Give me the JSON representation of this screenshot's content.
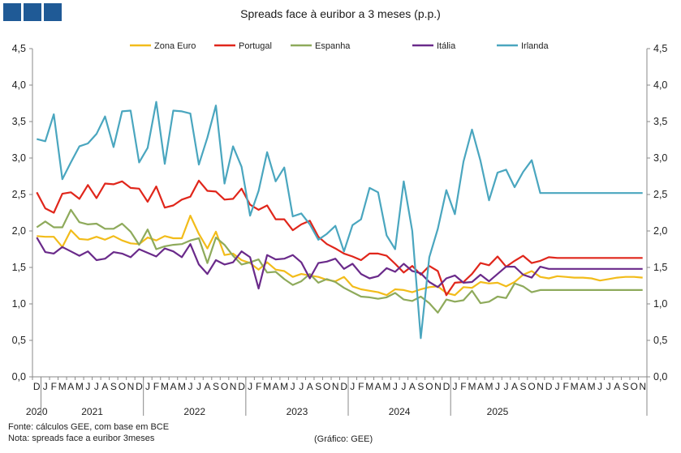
{
  "header": {
    "logo_colors": [
      "#1f5a96",
      "#1f5a96",
      "#1f5a96"
    ]
  },
  "chart_data": {
    "type": "line",
    "title": "Spreads face à euribor a 3 meses (p.p.)",
    "xlabel": "",
    "ylabel": "",
    "ylim": [
      0,
      4.5
    ],
    "yticks": [
      "0,0",
      "0,5",
      "1,0",
      "1,5",
      "2,0",
      "2,5",
      "3,0",
      "3,5",
      "4,0",
      "4,5"
    ],
    "grid": false,
    "legend_position": "top",
    "month_labels": [
      "D",
      "J",
      "F",
      "M",
      "A",
      "M",
      "J",
      "J",
      "A",
      "S",
      "O",
      "N",
      "D",
      "J",
      "F",
      "M",
      "A",
      "M",
      "J",
      "J",
      "A",
      "S",
      "O",
      "N",
      "D",
      "J",
      "F",
      "M",
      "A",
      "M",
      "J",
      "J",
      "A",
      "S",
      "O",
      "N",
      "D",
      "J",
      "F",
      "M",
      "A",
      "M",
      "J",
      "J",
      "A",
      "S",
      "O",
      "N",
      "D",
      "J",
      "F",
      "M",
      "A",
      "M",
      "J",
      "J",
      "A",
      "S",
      "O",
      "N",
      "D",
      "J",
      "F",
      "M",
      "A",
      "M",
      "J",
      "J",
      "A",
      "S",
      "O",
      "N"
    ],
    "year_labels": [
      {
        "label": "2020",
        "start": 0,
        "end": 0
      },
      {
        "label": "2021",
        "start": 1,
        "end": 12
      },
      {
        "label": "2022",
        "start": 13,
        "end": 24
      },
      {
        "label": "2023",
        "start": 25,
        "end": 36
      },
      {
        "label": "2024",
        "start": 37,
        "end": 48
      },
      {
        "label": "2025",
        "start": 49,
        "end": 59
      }
    ],
    "x": [
      0,
      0.5,
      1,
      1.5,
      2,
      2.5,
      3,
      3.5,
      4,
      4.5,
      5,
      5.5,
      6,
      6.5,
      7,
      7.5,
      8,
      8.5,
      9,
      9.5,
      10,
      10.5,
      11,
      11.5,
      12,
      12.5,
      13,
      13.5,
      14,
      14.5,
      15,
      15.5,
      16,
      16.5,
      17,
      17.5,
      18,
      18.5,
      19,
      19.5,
      20,
      20.5,
      21,
      21.5,
      22,
      22.5,
      23,
      23.5,
      24,
      24.5,
      25,
      25.5,
      26,
      26.5,
      27,
      27.5,
      28,
      28.5,
      29,
      29.5,
      30,
      30.5,
      31,
      31.5,
      32,
      32.5,
      33,
      33.5,
      34,
      34.5,
      35,
      35.5,
      36,
      36.5,
      37,
      37.5,
      38,
      38.5,
      39,
      39.5,
      40,
      40.5,
      41,
      41.5,
      42,
      42.5,
      43,
      43.5,
      44,
      44.5,
      45,
      45.5,
      46,
      46.5,
      47,
      47.5,
      48,
      48.5,
      49,
      49.5,
      50,
      50.5,
      51,
      51.5,
      52,
      52.5,
      53,
      53.5,
      54,
      54.5,
      55,
      55.5,
      56,
      56.5,
      57,
      57.5,
      58,
      58.5,
      59,
      59.5
    ],
    "series": [
      {
        "name": "Zona Euro",
        "color": "#f2bc1a",
        "values": [
          1.93,
          1.92,
          1.92,
          1.78,
          2.01,
          1.89,
          1.88,
          1.92,
          1.88,
          1.93,
          1.87,
          1.83,
          1.82,
          1.91,
          1.87,
          1.93,
          1.9,
          1.9,
          2.21,
          1.96,
          1.76,
          1.99,
          1.67,
          1.69,
          1.6,
          1.56,
          1.47,
          1.57,
          1.47,
          1.45,
          1.37,
          1.41,
          1.39,
          1.37,
          1.33,
          1.31,
          1.37,
          1.24,
          1.2,
          1.18,
          1.16,
          1.12,
          1.2,
          1.19,
          1.16,
          1.2,
          1.23,
          1.24,
          1.15,
          1.12,
          1.23,
          1.22,
          1.3,
          1.28,
          1.29,
          1.24,
          1.3,
          1.4,
          1.45,
          1.37,
          1.35,
          1.38,
          1.37,
          1.36,
          1.36,
          1.35,
          1.32,
          1.34,
          1.36,
          1.37,
          1.37,
          1.36,
          1.36,
          1.35,
          1.35,
          1.34,
          1.35,
          1.36,
          1.36,
          1.37,
          1.37,
          1.36,
          1.37,
          1.38,
          1.37,
          1.36,
          1.37,
          1.36,
          1.35,
          1.36,
          1.37,
          1.36,
          1.37,
          1.36,
          1.37,
          1.36,
          1.37,
          1.36,
          1.37,
          1.36,
          1.37,
          1.36,
          1.37,
          1.36,
          1.37,
          1.36,
          1.37,
          1.36,
          1.37,
          1.36,
          1.37,
          1.36,
          1.37,
          1.36,
          1.37,
          1.36,
          1.37,
          1.36,
          1.37,
          1.36
        ]
      },
      {
        "name": "Portugal",
        "color": "#e0261b",
        "values": [
          2.53,
          2.31,
          2.25,
          2.51,
          2.53,
          2.44,
          2.63,
          2.45,
          2.65,
          2.64,
          2.68,
          2.59,
          2.58,
          2.4,
          2.61,
          2.32,
          2.35,
          2.43,
          2.47,
          2.69,
          2.55,
          2.54,
          2.43,
          2.44,
          2.58,
          2.36,
          2.29,
          2.35,
          2.16,
          2.16,
          2.01,
          2.09,
          2.14,
          1.92,
          1.82,
          1.76,
          1.69,
          1.65,
          1.6,
          1.69,
          1.69,
          1.66,
          1.55,
          1.43,
          1.52,
          1.4,
          1.52,
          1.45,
          1.12,
          1.29,
          1.3,
          1.41,
          1.56,
          1.53,
          1.65,
          1.51,
          1.59,
          1.66,
          1.56,
          1.59,
          1.64,
          1.63,
          1.63,
          1.63,
          1.63,
          1.63,
          1.63,
          1.63,
          1.63,
          1.63,
          1.63,
          1.63,
          1.63,
          1.63,
          1.63,
          1.63,
          1.63,
          1.63,
          1.63,
          1.63,
          1.63,
          1.63,
          1.63,
          1.63,
          1.63,
          1.63,
          1.63,
          1.63,
          1.63,
          1.63,
          1.63,
          1.63,
          1.63,
          1.63,
          1.63,
          1.63,
          1.63,
          1.63,
          1.63,
          1.63,
          1.63,
          1.63,
          1.63,
          1.63,
          1.63,
          1.63,
          1.63,
          1.63,
          1.63,
          1.63,
          1.63,
          1.63,
          1.63,
          1.63,
          1.63,
          1.63,
          1.63,
          1.63,
          1.63,
          1.63
        ]
      },
      {
        "name": "Espanha",
        "color": "#8eaa5b",
        "values": [
          2.05,
          2.13,
          2.05,
          2.05,
          2.29,
          2.12,
          2.09,
          2.1,
          2.03,
          2.03,
          2.1,
          1.99,
          1.81,
          2.02,
          1.75,
          1.79,
          1.81,
          1.82,
          1.87,
          1.9,
          1.56,
          1.91,
          1.81,
          1.66,
          1.54,
          1.57,
          1.61,
          1.43,
          1.44,
          1.34,
          1.26,
          1.31,
          1.41,
          1.29,
          1.34,
          1.3,
          1.22,
          1.16,
          1.1,
          1.09,
          1.07,
          1.09,
          1.15,
          1.06,
          1.04,
          1.1,
          1.01,
          0.88,
          1.06,
          1.03,
          1.05,
          1.18,
          1.01,
          1.03,
          1.1,
          1.08,
          1.28,
          1.24,
          1.16,
          1.19,
          1.19,
          1.19,
          1.19,
          1.19,
          1.19,
          1.19,
          1.19,
          1.19,
          1.19,
          1.19,
          1.19,
          1.19,
          1.19,
          1.19,
          1.19,
          1.19,
          1.19,
          1.19,
          1.19,
          1.19,
          1.19,
          1.19,
          1.19,
          1.19,
          1.19,
          1.19,
          1.19,
          1.19,
          1.19,
          1.19,
          1.19,
          1.19,
          1.19,
          1.19,
          1.19,
          1.19,
          1.19,
          1.19,
          1.19,
          1.19,
          1.19,
          1.19,
          1.19,
          1.19,
          1.19,
          1.19,
          1.19,
          1.19,
          1.19,
          1.19,
          1.19,
          1.19,
          1.19,
          1.19,
          1.19,
          1.19,
          1.19,
          1.19,
          1.19,
          1.19
        ]
      },
      {
        "name": "Itália",
        "color": "#6a2a8a",
        "values": [
          1.91,
          1.71,
          1.69,
          1.78,
          1.72,
          1.66,
          1.72,
          1.6,
          1.62,
          1.71,
          1.69,
          1.64,
          1.75,
          1.7,
          1.65,
          1.76,
          1.72,
          1.64,
          1.82,
          1.54,
          1.41,
          1.6,
          1.54,
          1.57,
          1.72,
          1.64,
          1.21,
          1.67,
          1.61,
          1.62,
          1.67,
          1.57,
          1.35,
          1.56,
          1.58,
          1.62,
          1.48,
          1.55,
          1.41,
          1.35,
          1.38,
          1.49,
          1.44,
          1.55,
          1.45,
          1.42,
          1.3,
          1.23,
          1.35,
          1.39,
          1.29,
          1.3,
          1.4,
          1.31,
          1.41,
          1.51,
          1.51,
          1.4,
          1.36,
          1.51,
          1.48,
          1.48,
          1.48,
          1.48,
          1.48,
          1.48,
          1.48,
          1.48,
          1.48,
          1.48,
          1.48,
          1.48,
          1.48,
          1.48,
          1.48,
          1.48,
          1.48,
          1.48,
          1.48,
          1.48,
          1.48,
          1.48,
          1.48,
          1.48,
          1.48,
          1.48,
          1.48,
          1.48,
          1.48,
          1.48,
          1.48,
          1.48,
          1.48,
          1.48,
          1.48,
          1.48,
          1.48,
          1.48,
          1.48,
          1.48,
          1.48,
          1.48,
          1.48,
          1.48,
          1.48,
          1.48,
          1.48,
          1.48,
          1.48,
          1.48,
          1.48,
          1.48,
          1.48,
          1.48,
          1.48,
          1.48,
          1.48,
          1.48,
          1.48,
          1.48
        ]
      },
      {
        "name": "Irlanda",
        "color": "#4aa6bf",
        "values": [
          3.26,
          3.23,
          3.6,
          2.71,
          2.94,
          3.16,
          3.2,
          3.33,
          3.57,
          3.15,
          3.64,
          3.65,
          2.94,
          3.14,
          3.77,
          2.92,
          3.65,
          3.64,
          3.61,
          2.91,
          3.28,
          3.72,
          2.65,
          3.16,
          2.88,
          2.21,
          2.55,
          3.08,
          2.68,
          2.87,
          2.2,
          2.24,
          2.09,
          1.88,
          1.96,
          2.07,
          1.72,
          2.08,
          2.16,
          2.59,
          2.53,
          1.94,
          1.75,
          2.68,
          2.0,
          0.53,
          1.64,
          2.03,
          2.56,
          2.23,
          2.95,
          3.39,
          2.96,
          2.42,
          2.8,
          2.84,
          2.6,
          2.81,
          2.97,
          2.52,
          2.52,
          2.52,
          2.52,
          2.52,
          2.52,
          2.52,
          2.52,
          2.52,
          2.52,
          2.52,
          2.52,
          2.52,
          2.52,
          2.52,
          2.52,
          2.52,
          2.52,
          2.52,
          2.52,
          2.52,
          2.52,
          2.52,
          2.52,
          2.52,
          2.52,
          2.52,
          2.52,
          2.52,
          2.52,
          2.52,
          2.52,
          2.52,
          2.52,
          2.52,
          2.52,
          2.52,
          2.52,
          2.52,
          2.52,
          2.52,
          2.52,
          2.52,
          2.52,
          2.52,
          2.52,
          2.52,
          2.52,
          2.52,
          2.52,
          2.52,
          2.52,
          2.52,
          2.52,
          2.52,
          2.52,
          2.52,
          2.52,
          2.52,
          2.52,
          2.52
        ]
      }
    ]
  },
  "footer": {
    "source": "Fonte: cálculos GEE, com base em BCE",
    "note": "Nota: spreads face a euribor 3meses",
    "credit": "(Gráfico: GEE)"
  }
}
